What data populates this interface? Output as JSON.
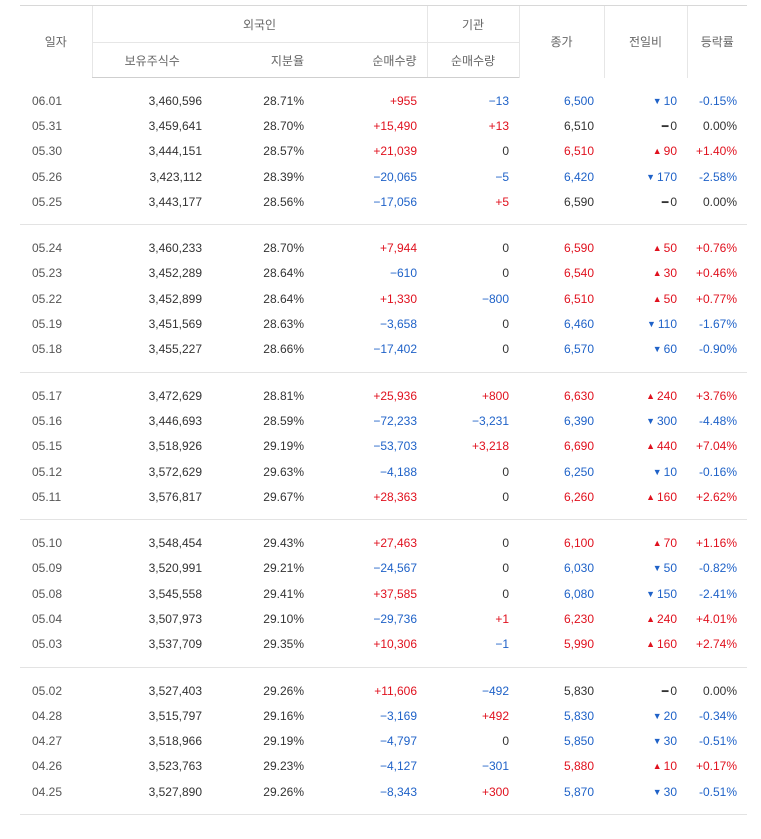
{
  "header": {
    "date": "일자",
    "foreign": "외국인",
    "institution": "기관",
    "close": "종가",
    "change": "전일비",
    "rate": "등락률",
    "holdings": "보유주식수",
    "ratio": "지분율",
    "foreign_net": "순매수량",
    "inst_net": "순매수량"
  },
  "colors": {
    "up": "#e0111e",
    "down": "#1f62c8",
    "flat": "#333333"
  },
  "groups": [
    {
      "rows": [
        {
          "date": "06.01",
          "holdings": "3,460,596",
          "ratio": "28.71%",
          "foreign_net": "+955",
          "inst_net": "−13",
          "close": "6,500",
          "dir": "down",
          "change": "10",
          "rate": "-0.15%"
        },
        {
          "date": "05.31",
          "holdings": "3,459,641",
          "ratio": "28.70%",
          "foreign_net": "+15,490",
          "inst_net": "+13",
          "close": "6,510",
          "dir": "flat",
          "change": "0",
          "rate": "0.00%"
        },
        {
          "date": "05.30",
          "holdings": "3,444,151",
          "ratio": "28.57%",
          "foreign_net": "+21,039",
          "inst_net": "0",
          "close": "6,510",
          "dir": "up",
          "change": "90",
          "rate": "+1.40%"
        },
        {
          "date": "05.26",
          "holdings": "3,423,112",
          "ratio": "28.39%",
          "foreign_net": "−20,065",
          "inst_net": "−5",
          "close": "6,420",
          "dir": "down",
          "change": "170",
          "rate": "-2.58%"
        },
        {
          "date": "05.25",
          "holdings": "3,443,177",
          "ratio": "28.56%",
          "foreign_net": "−17,056",
          "inst_net": "+5",
          "close": "6,590",
          "dir": "flat",
          "change": "0",
          "rate": "0.00%"
        }
      ]
    },
    {
      "rows": [
        {
          "date": "05.24",
          "holdings": "3,460,233",
          "ratio": "28.70%",
          "foreign_net": "+7,944",
          "inst_net": "0",
          "close": "6,590",
          "dir": "up",
          "change": "50",
          "rate": "+0.76%"
        },
        {
          "date": "05.23",
          "holdings": "3,452,289",
          "ratio": "28.64%",
          "foreign_net": "−610",
          "inst_net": "0",
          "close": "6,540",
          "dir": "up",
          "change": "30",
          "rate": "+0.46%"
        },
        {
          "date": "05.22",
          "holdings": "3,452,899",
          "ratio": "28.64%",
          "foreign_net": "+1,330",
          "inst_net": "−800",
          "close": "6,510",
          "dir": "up",
          "change": "50",
          "rate": "+0.77%"
        },
        {
          "date": "05.19",
          "holdings": "3,451,569",
          "ratio": "28.63%",
          "foreign_net": "−3,658",
          "inst_net": "0",
          "close": "6,460",
          "dir": "down",
          "change": "110",
          "rate": "-1.67%"
        },
        {
          "date": "05.18",
          "holdings": "3,455,227",
          "ratio": "28.66%",
          "foreign_net": "−17,402",
          "inst_net": "0",
          "close": "6,570",
          "dir": "down",
          "change": "60",
          "rate": "-0.90%"
        }
      ]
    },
    {
      "rows": [
        {
          "date": "05.17",
          "holdings": "3,472,629",
          "ratio": "28.81%",
          "foreign_net": "+25,936",
          "inst_net": "+800",
          "close": "6,630",
          "dir": "up",
          "change": "240",
          "rate": "+3.76%"
        },
        {
          "date": "05.16",
          "holdings": "3,446,693",
          "ratio": "28.59%",
          "foreign_net": "−72,233",
          "inst_net": "−3,231",
          "close": "6,390",
          "dir": "down",
          "change": "300",
          "rate": "-4.48%"
        },
        {
          "date": "05.15",
          "holdings": "3,518,926",
          "ratio": "29.19%",
          "foreign_net": "−53,703",
          "inst_net": "+3,218",
          "close": "6,690",
          "dir": "up",
          "change": "440",
          "rate": "+7.04%"
        },
        {
          "date": "05.12",
          "holdings": "3,572,629",
          "ratio": "29.63%",
          "foreign_net": "−4,188",
          "inst_net": "0",
          "close": "6,250",
          "dir": "down",
          "change": "10",
          "rate": "-0.16%"
        },
        {
          "date": "05.11",
          "holdings": "3,576,817",
          "ratio": "29.67%",
          "foreign_net": "+28,363",
          "inst_net": "0",
          "close": "6,260",
          "dir": "up",
          "change": "160",
          "rate": "+2.62%"
        }
      ]
    },
    {
      "rows": [
        {
          "date": "05.10",
          "holdings": "3,548,454",
          "ratio": "29.43%",
          "foreign_net": "+27,463",
          "inst_net": "0",
          "close": "6,100",
          "dir": "up",
          "change": "70",
          "rate": "+1.16%"
        },
        {
          "date": "05.09",
          "holdings": "3,520,991",
          "ratio": "29.21%",
          "foreign_net": "−24,567",
          "inst_net": "0",
          "close": "6,030",
          "dir": "down",
          "change": "50",
          "rate": "-0.82%"
        },
        {
          "date": "05.08",
          "holdings": "3,545,558",
          "ratio": "29.41%",
          "foreign_net": "+37,585",
          "inst_net": "0",
          "close": "6,080",
          "dir": "down",
          "change": "150",
          "rate": "-2.41%"
        },
        {
          "date": "05.04",
          "holdings": "3,507,973",
          "ratio": "29.10%",
          "foreign_net": "−29,736",
          "inst_net": "+1",
          "close": "6,230",
          "dir": "up",
          "change": "240",
          "rate": "+4.01%"
        },
        {
          "date": "05.03",
          "holdings": "3,537,709",
          "ratio": "29.35%",
          "foreign_net": "+10,306",
          "inst_net": "−1",
          "close": "5,990",
          "dir": "up",
          "change": "160",
          "rate": "+2.74%"
        }
      ]
    },
    {
      "rows": [
        {
          "date": "05.02",
          "holdings": "3,527,403",
          "ratio": "29.26%",
          "foreign_net": "+11,606",
          "inst_net": "−492",
          "close": "5,830",
          "dir": "flat",
          "change": "0",
          "rate": "0.00%"
        },
        {
          "date": "04.28",
          "holdings": "3,515,797",
          "ratio": "29.16%",
          "foreign_net": "−3,169",
          "inst_net": "+492",
          "close": "5,830",
          "dir": "down",
          "change": "20",
          "rate": "-0.34%"
        },
        {
          "date": "04.27",
          "holdings": "3,518,966",
          "ratio": "29.19%",
          "foreign_net": "−4,797",
          "inst_net": "0",
          "close": "5,850",
          "dir": "down",
          "change": "30",
          "rate": "-0.51%"
        },
        {
          "date": "04.26",
          "holdings": "3,523,763",
          "ratio": "29.23%",
          "foreign_net": "−4,127",
          "inst_net": "−301",
          "close": "5,880",
          "dir": "up",
          "change": "10",
          "rate": "+0.17%"
        },
        {
          "date": "04.25",
          "holdings": "3,527,890",
          "ratio": "29.26%",
          "foreign_net": "−8,343",
          "inst_net": "+300",
          "close": "5,870",
          "dir": "down",
          "change": "30",
          "rate": "-0.51%"
        }
      ]
    }
  ]
}
